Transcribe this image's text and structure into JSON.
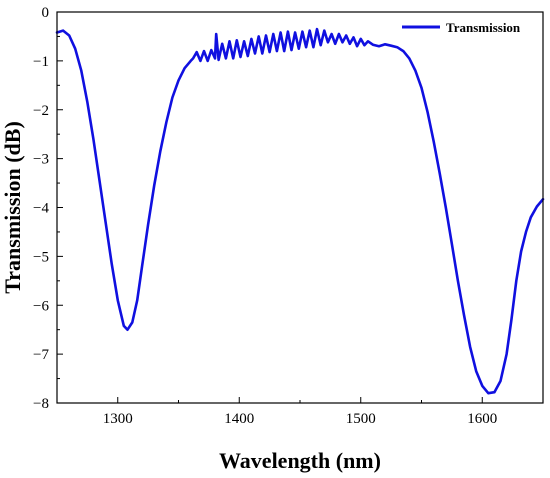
{
  "chart_data": {
    "type": "line",
    "xlabel": "Wavelength (nm)",
    "ylabel": "Transmission (dB)",
    "xlim": [
      1250,
      1650
    ],
    "ylim": [
      -8,
      0
    ],
    "xticks": [
      1300,
      1400,
      1500,
      1600
    ],
    "yticks": [
      0,
      -1,
      -2,
      -3,
      -4,
      -5,
      -6,
      -7,
      -8
    ],
    "grid": false,
    "legend_position": "top-right",
    "color": "#1010e0",
    "series": [
      {
        "name": "Transmission",
        "x": [
          1250,
          1255,
          1260,
          1265,
          1270,
          1275,
          1280,
          1285,
          1290,
          1295,
          1300,
          1305,
          1308,
          1312,
          1316,
          1320,
          1325,
          1330,
          1335,
          1340,
          1345,
          1350,
          1355,
          1360,
          1362,
          1365,
          1368,
          1371,
          1374,
          1377,
          1380,
          1381,
          1383,
          1386,
          1389,
          1392,
          1395,
          1398,
          1401,
          1404,
          1407,
          1410,
          1413,
          1416,
          1419,
          1422,
          1425,
          1428,
          1431,
          1434,
          1437,
          1440,
          1443,
          1446,
          1449,
          1452,
          1455,
          1458,
          1461,
          1464,
          1467,
          1470,
          1473,
          1476,
          1479,
          1482,
          1485,
          1488,
          1491,
          1494,
          1497,
          1500,
          1503,
          1506,
          1510,
          1515,
          1520,
          1525,
          1530,
          1535,
          1540,
          1545,
          1550,
          1555,
          1560,
          1565,
          1570,
          1575,
          1580,
          1585,
          1590,
          1595,
          1600,
          1605,
          1610,
          1615,
          1620,
          1624,
          1628,
          1632,
          1636,
          1640,
          1645,
          1650
        ],
        "y": [
          -0.42,
          -0.38,
          -0.48,
          -0.75,
          -1.2,
          -1.85,
          -2.6,
          -3.45,
          -4.3,
          -5.15,
          -5.9,
          -6.42,
          -6.5,
          -6.35,
          -5.9,
          -5.2,
          -4.35,
          -3.55,
          -2.85,
          -2.25,
          -1.75,
          -1.4,
          -1.15,
          -1.0,
          -0.95,
          -0.82,
          -1.0,
          -0.8,
          -1.0,
          -0.78,
          -0.95,
          -0.45,
          -0.98,
          -0.65,
          -0.95,
          -0.6,
          -0.95,
          -0.58,
          -0.92,
          -0.6,
          -0.9,
          -0.55,
          -0.85,
          -0.5,
          -0.85,
          -0.48,
          -0.82,
          -0.45,
          -0.8,
          -0.42,
          -0.8,
          -0.4,
          -0.78,
          -0.42,
          -0.75,
          -0.4,
          -0.72,
          -0.38,
          -0.72,
          -0.35,
          -0.68,
          -0.38,
          -0.62,
          -0.45,
          -0.65,
          -0.45,
          -0.62,
          -0.48,
          -0.65,
          -0.52,
          -0.7,
          -0.55,
          -0.68,
          -0.6,
          -0.67,
          -0.7,
          -0.66,
          -0.69,
          -0.72,
          -0.8,
          -0.95,
          -1.2,
          -1.55,
          -2.05,
          -2.65,
          -3.3,
          -4.0,
          -4.75,
          -5.5,
          -6.2,
          -6.85,
          -7.35,
          -7.65,
          -7.8,
          -7.78,
          -7.55,
          -7.0,
          -6.3,
          -5.5,
          -4.9,
          -4.5,
          -4.2,
          -3.98,
          -3.83
        ]
      }
    ]
  }
}
